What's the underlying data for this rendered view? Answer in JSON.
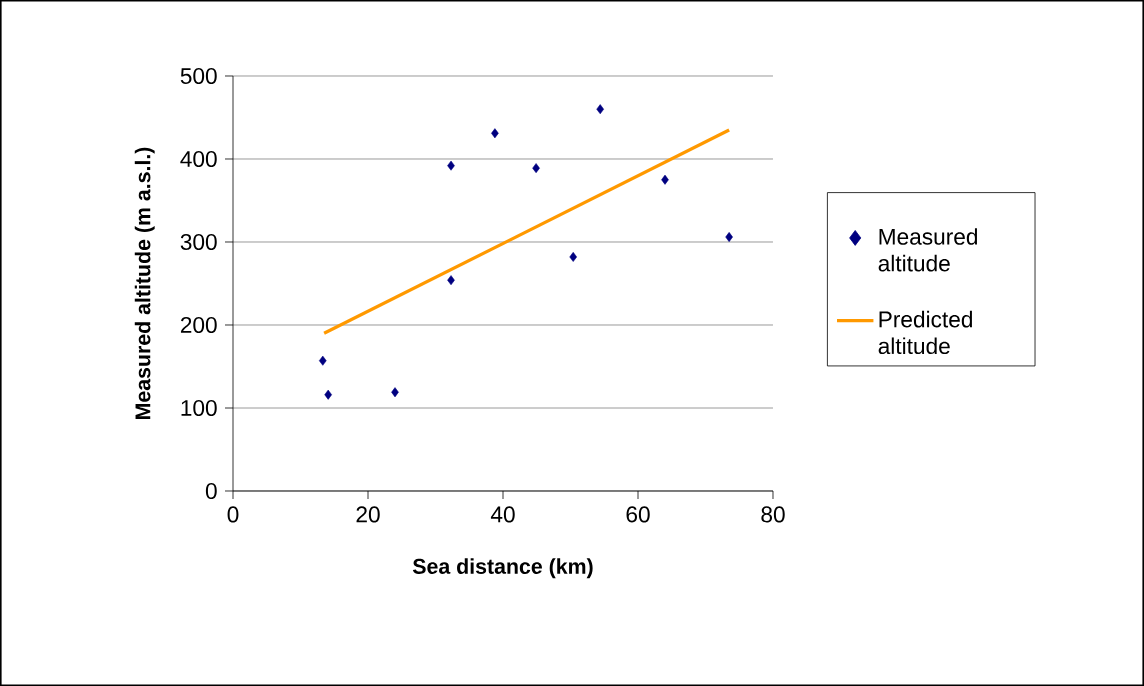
{
  "chart_data": {
    "type": "scatter",
    "xlabel": "Sea distance (km)",
    "ylabel": "Measured altitude (m a.s.l.)",
    "xlim": [
      0,
      80
    ],
    "xticks": [
      0,
      20,
      40,
      60,
      80
    ],
    "ylim": [
      0,
      500
    ],
    "yticks": [
      0,
      100,
      200,
      300,
      400,
      500
    ],
    "grid": "y",
    "legend": "right",
    "series": [
      {
        "name": "Measured altitude",
        "marker": "diamond",
        "color": "#000080",
        "x": [
          13.3,
          14.1,
          24,
          32.3,
          32.3,
          38.8,
          44.9,
          50.4,
          54.4,
          64,
          73.5
        ],
        "values": [
          157,
          116,
          119,
          392,
          254,
          431,
          389,
          282,
          460,
          375,
          306
        ]
      },
      {
        "name": "Predicted altitude",
        "type": "line",
        "marker": "none",
        "line_style": "solid",
        "color": "#ff9900",
        "x": [
          13.5,
          73.5
        ],
        "values": [
          190,
          435
        ]
      }
    ]
  }
}
